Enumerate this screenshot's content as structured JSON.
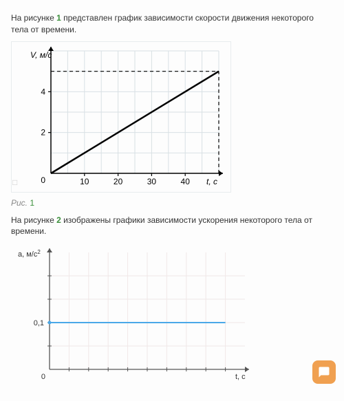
{
  "text1_pre": "На рисунке ",
  "text1_num": "1",
  "text1_post": " представлен график зависимости скорости движения некоторого тела от времени.",
  "caption1_pre": "Рис. ",
  "caption1_num": "1",
  "text2_pre": "На рисунке ",
  "text2_num": "2",
  "text2_post": " изображены графики зависимости ускорения некоторого тела от времени.",
  "chart1": {
    "type": "line",
    "ylabel": "V, м/с",
    "xlabel": "t, с",
    "origin_label": "0",
    "yticks": [
      2,
      4
    ],
    "xticks": [
      10,
      20,
      30,
      40
    ],
    "xlim": [
      0,
      50
    ],
    "ylim": [
      0,
      6
    ],
    "grid_color": "#d8e0e4",
    "axis_color": "#000000",
    "line_color": "#000000",
    "dash_color": "#000000",
    "background": "#ffffff",
    "line_points": [
      [
        0,
        0
      ],
      [
        50,
        5
      ]
    ],
    "dash_v_x": 50,
    "dash_h_y": 5,
    "grid_step": 5,
    "label_fontsize": 12
  },
  "chart2": {
    "type": "line",
    "ylabel": "a, м/с",
    "ylabel_sup": "2",
    "xlabel": "t, с",
    "origin_label": "0",
    "yticks_labels": [
      "0,1"
    ],
    "yticks_vals": [
      0.1
    ],
    "ylim": [
      0,
      0.25
    ],
    "xlim": [
      0,
      10
    ],
    "grid_color": "#f0e8e8",
    "axis_color": "#555555",
    "line_color": "#4aa8e8",
    "background": "#ffffff",
    "line_y": 0.1,
    "line_x_extent": [
      0,
      9
    ],
    "label_fontsize": 11
  },
  "colors": {
    "chat_button": "#f0a050",
    "highlight": "#3a8f3a"
  }
}
